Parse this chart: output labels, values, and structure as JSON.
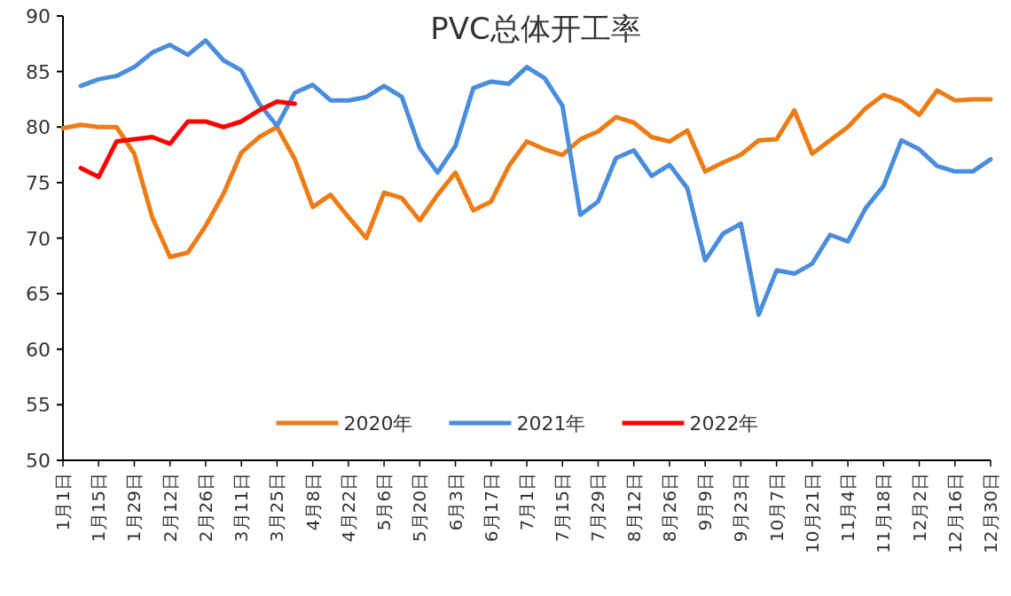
{
  "chart_data": {
    "type": "line",
    "title": "PVC总体开工率",
    "categories": [
      "1月1日",
      null,
      "1月15日",
      null,
      "1月29日",
      null,
      "2月12日",
      null,
      "2月26日",
      null,
      "3月11日",
      null,
      "3月25日",
      null,
      "4月8日",
      null,
      "4月22日",
      null,
      "5月6日",
      null,
      "5月20日",
      null,
      "6月3日",
      null,
      "6月17日",
      null,
      "7月1日",
      null,
      "7月15日",
      null,
      "7月29日",
      null,
      "8月12日",
      null,
      "8月26日",
      null,
      "9月9日",
      null,
      "9月23日",
      null,
      "10月7日",
      null,
      "10月21日",
      null,
      "11月4日",
      null,
      "11月18日",
      null,
      "12月2日",
      null,
      "12月16日",
      null,
      "12月30日"
    ],
    "series": [
      {
        "name": "2020年",
        "color": "#ee7b14",
        "values": [
          79.9,
          80.2,
          80.0,
          80.0,
          77.6,
          71.9,
          68.3,
          68.7,
          71.1,
          74.0,
          77.7,
          79.1,
          80.0,
          77.1,
          72.8,
          73.9,
          71.9,
          70.0,
          74.1,
          73.6,
          71.6,
          73.9,
          75.9,
          72.5,
          73.3,
          76.5,
          78.7,
          78.0,
          77.5,
          78.9,
          79.6,
          80.9,
          80.4,
          79.1,
          78.7,
          79.7,
          76.0,
          76.8,
          77.5,
          78.8,
          78.9,
          81.5,
          77.6,
          78.8,
          80.0,
          81.7,
          82.9,
          82.3,
          81.1,
          83.3,
          82.4,
          82.5,
          82.5
        ]
      },
      {
        "name": "2021年",
        "color": "#4a8ddd",
        "values": [
          null,
          83.7,
          84.3,
          84.6,
          85.4,
          86.7,
          87.4,
          86.5,
          87.8,
          86.0,
          85.1,
          82.1,
          80.1,
          83.1,
          83.8,
          82.4,
          82.4,
          82.7,
          83.7,
          82.7,
          78.1,
          75.9,
          78.3,
          83.5,
          84.1,
          83.9,
          85.4,
          84.4,
          81.9,
          72.1,
          73.3,
          77.2,
          77.9,
          75.6,
          76.6,
          74.5,
          68.0,
          70.4,
          71.3,
          63.1,
          67.1,
          66.8,
          67.7,
          70.3,
          69.7,
          72.7,
          74.7,
          78.8,
          78.0,
          76.5,
          76.0,
          76.0,
          77.1
        ]
      },
      {
        "name": "2022年",
        "color": "#ff0000",
        "values": [
          null,
          76.3,
          75.5,
          78.7,
          78.9,
          79.1,
          78.5,
          80.5,
          80.5,
          80.0,
          80.5,
          81.5,
          82.3,
          82.1,
          null,
          null,
          null,
          null,
          null,
          null,
          null,
          null,
          null,
          null,
          null,
          null,
          null,
          null,
          null,
          null,
          null,
          null,
          null,
          null,
          null,
          null,
          null,
          null,
          null,
          null,
          null,
          null,
          null,
          null,
          null,
          null,
          null,
          null,
          null,
          null,
          null,
          null,
          null
        ]
      }
    ],
    "ylim": [
      50,
      90
    ],
    "yticks": [
      50,
      55,
      60,
      65,
      70,
      75,
      80,
      85,
      90
    ],
    "grid": false,
    "legend": "bottom"
  }
}
